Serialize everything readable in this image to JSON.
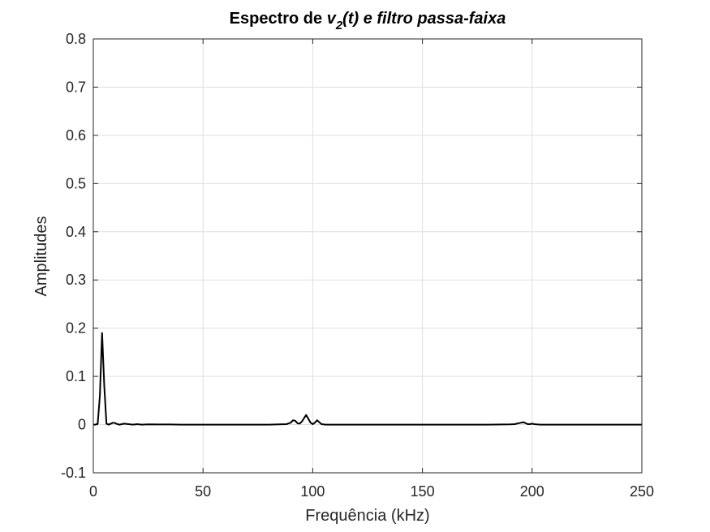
{
  "chart_data": {
    "type": "line",
    "title": {
      "prefix": "Espectro de ",
      "var": "v",
      "sub": "2",
      "suffix": "(t) e filtro passa-faixa"
    },
    "xlabel": "Frequência (kHz)",
    "ylabel": "Amplitudes",
    "xlim": [
      0,
      250
    ],
    "ylim": [
      -0.1,
      0.8
    ],
    "xticks": [
      0,
      50,
      100,
      150,
      200,
      250
    ],
    "yticks": [
      -0.1,
      0,
      0.1,
      0.2,
      0.3,
      0.4,
      0.5,
      0.6,
      0.7,
      0.8
    ],
    "xtick_labels": [
      "0",
      "50",
      "100",
      "150",
      "200",
      "250"
    ],
    "ytick_labels": [
      "-0.1",
      "0",
      "0.1",
      "0.2",
      "0.3",
      "0.4",
      "0.5",
      "0.6",
      "0.7",
      "0.8"
    ],
    "grid": true,
    "line_color": "#000000",
    "series": [
      {
        "x": [
          0,
          1,
          2,
          3,
          4,
          5,
          6,
          7,
          8,
          9,
          10,
          11,
          12,
          14,
          16,
          18,
          20,
          22,
          25,
          30,
          35,
          40,
          50,
          60,
          70,
          80,
          88,
          90,
          91,
          92,
          93,
          94,
          95,
          96,
          97,
          98,
          99,
          100,
          101,
          102,
          103,
          104,
          106,
          110,
          120,
          140,
          160,
          180,
          190,
          192,
          193,
          194,
          195,
          196,
          197,
          198,
          199,
          200,
          201,
          202,
          204,
          210,
          220,
          230,
          240,
          250
        ],
        "y": [
          0.0,
          0.0,
          0.002,
          0.06,
          0.19,
          0.08,
          0.002,
          0.0,
          0.002,
          0.004,
          0.003,
          0.001,
          0.0,
          0.002,
          0.001,
          0.0,
          0.001,
          0.0,
          0.0005,
          0.0003,
          0.0002,
          0.0,
          0.0,
          0.0,
          0.0,
          0.0,
          0.001,
          0.004,
          0.009,
          0.008,
          0.003,
          0.002,
          0.006,
          0.013,
          0.02,
          0.012,
          0.004,
          0.001,
          0.004,
          0.009,
          0.005,
          0.001,
          0.0,
          0.0,
          0.0,
          0.0,
          0.0,
          0.0,
          0.0005,
          0.001,
          0.002,
          0.003,
          0.004,
          0.005,
          0.003,
          0.001,
          0.001,
          0.002,
          0.001,
          0.0005,
          0.0,
          0.0,
          0.0,
          0.0,
          0.0,
          0.0
        ]
      }
    ]
  }
}
